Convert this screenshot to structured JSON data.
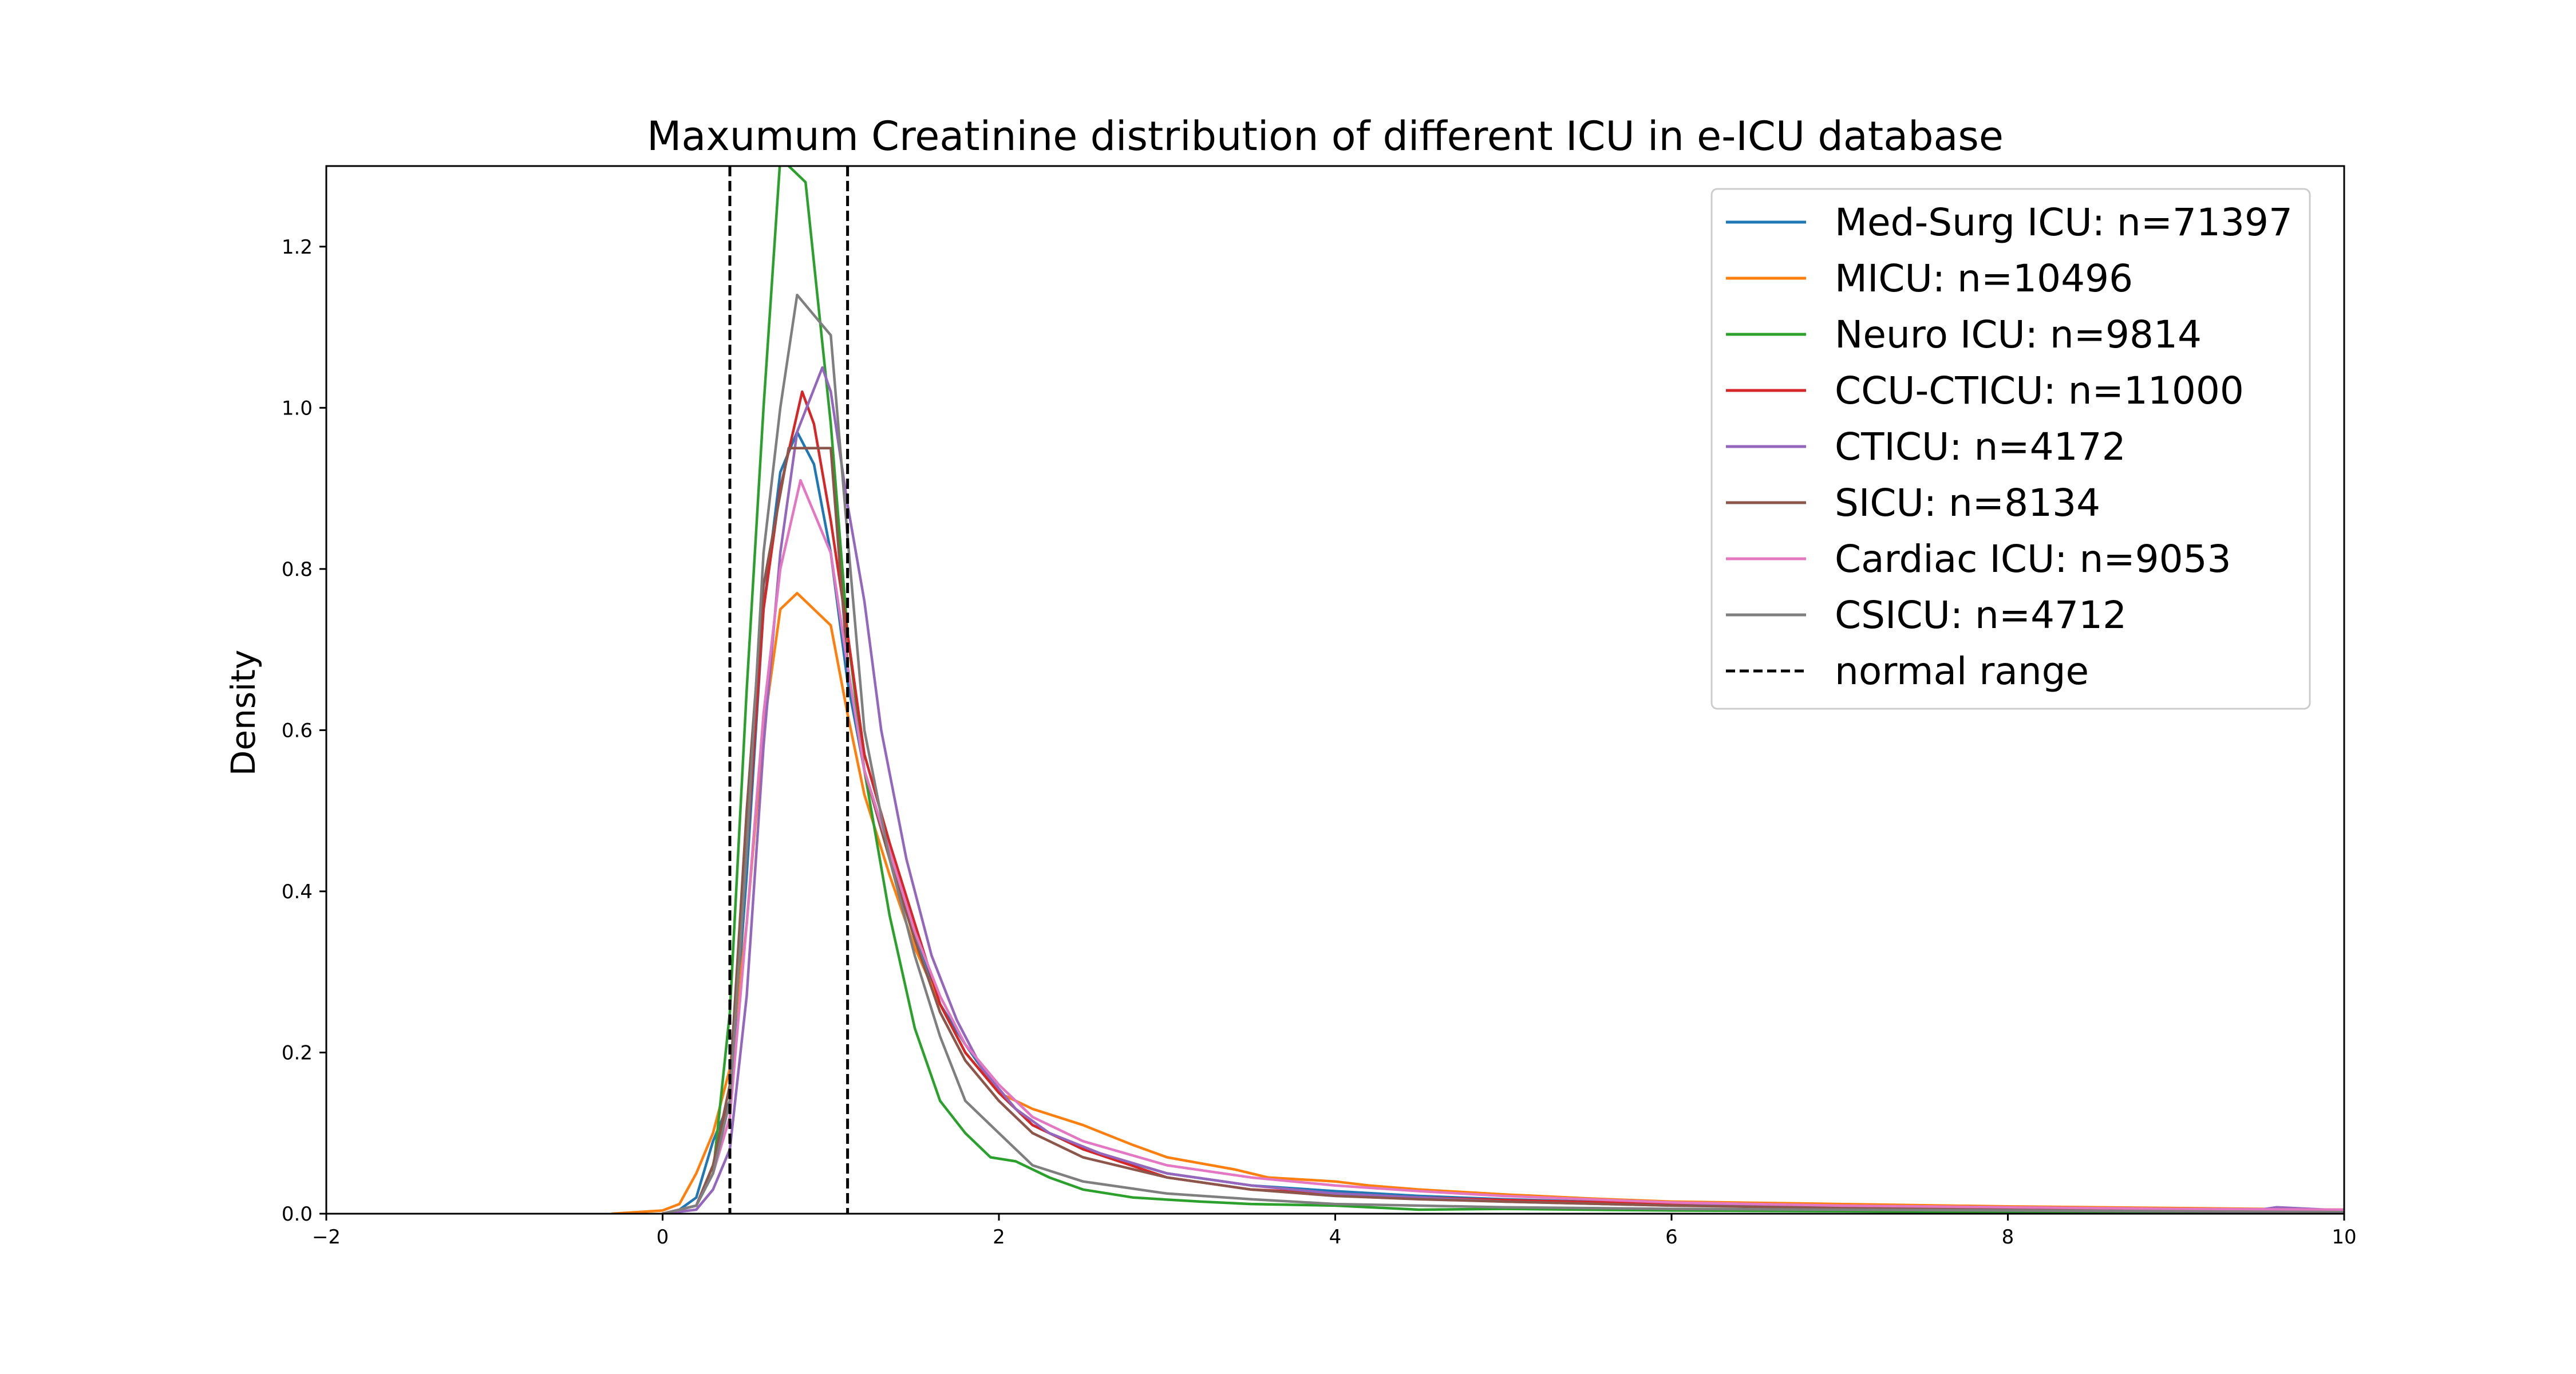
{
  "chart_data": {
    "type": "line",
    "title": "Maxumum Creatinine distribution of different ICU in e-ICU database",
    "xlabel": "",
    "ylabel": "Density",
    "xlim": [
      -2,
      10
    ],
    "ylim": [
      0,
      1.3
    ],
    "xticks": [
      "−2",
      "0",
      "2",
      "4",
      "6",
      "8",
      "10"
    ],
    "yticks": [
      "0.0",
      "0.2",
      "0.4",
      "0.6",
      "0.8",
      "1.0",
      "1.2"
    ],
    "xtick_values": [
      -2,
      0,
      2,
      4,
      6,
      8,
      10
    ],
    "ytick_values": [
      0,
      0.2,
      0.4,
      0.6,
      0.8,
      1.0,
      1.2
    ],
    "grid": false,
    "legend_position": "top-right",
    "normal_range": {
      "label": "normal range",
      "x": [
        0.4,
        1.1
      ],
      "color": "#000000"
    },
    "series": [
      {
        "name": "Med-Surg ICU: n=71397",
        "color": "#1f77b4",
        "x": [
          0,
          0.1,
          0.2,
          0.3,
          0.4,
          0.5,
          0.6,
          0.7,
          0.8,
          0.9,
          1.0,
          1.1,
          1.2,
          1.35,
          1.5,
          1.65,
          1.8,
          2.0,
          2.2,
          2.5,
          3.0,
          3.5,
          4.0,
          4.5,
          5.0,
          6.0,
          7.0,
          8.0,
          9.0,
          10.0
        ],
        "y": [
          0,
          0.005,
          0.02,
          0.09,
          0.14,
          0.42,
          0.75,
          0.92,
          0.97,
          0.93,
          0.82,
          0.66,
          0.55,
          0.45,
          0.35,
          0.26,
          0.21,
          0.15,
          0.11,
          0.08,
          0.05,
          0.035,
          0.028,
          0.022,
          0.018,
          0.012,
          0.009,
          0.007,
          0.005,
          0.004
        ]
      },
      {
        "name": "MICU: n=10496",
        "color": "#ff7f0e",
        "x": [
          -0.3,
          0,
          0.1,
          0.2,
          0.3,
          0.4,
          0.5,
          0.6,
          0.7,
          0.8,
          0.9,
          1.0,
          1.1,
          1.2,
          1.35,
          1.5,
          1.65,
          1.8,
          2.0,
          2.2,
          2.5,
          2.8,
          3.0,
          3.4,
          3.6,
          4.0,
          4.2,
          4.5,
          5.0,
          5.5,
          6.0,
          7.0,
          8.0,
          9.0,
          10.0
        ],
        "y": [
          0,
          0.004,
          0.012,
          0.05,
          0.1,
          0.18,
          0.36,
          0.6,
          0.75,
          0.77,
          0.75,
          0.73,
          0.62,
          0.52,
          0.42,
          0.33,
          0.26,
          0.2,
          0.15,
          0.13,
          0.11,
          0.085,
          0.07,
          0.055,
          0.045,
          0.04,
          0.035,
          0.03,
          0.024,
          0.019,
          0.015,
          0.012,
          0.009,
          0.007,
          0.005
        ]
      },
      {
        "name": "Neuro ICU: n=9814",
        "color": "#2ca02c",
        "x": [
          0,
          0.2,
          0.3,
          0.4,
          0.5,
          0.6,
          0.7,
          0.85,
          1.0,
          1.1,
          1.2,
          1.35,
          1.5,
          1.65,
          1.8,
          1.95,
          2.1,
          2.3,
          2.5,
          2.8,
          3.2,
          3.5,
          4.0,
          4.5,
          5.0,
          6.0,
          7.0,
          8.0,
          9.0,
          10.0
        ],
        "y": [
          0,
          0.01,
          0.05,
          0.25,
          0.65,
          1.0,
          1.31,
          1.28,
          0.98,
          0.72,
          0.55,
          0.37,
          0.23,
          0.14,
          0.1,
          0.07,
          0.065,
          0.045,
          0.03,
          0.02,
          0.015,
          0.012,
          0.01,
          0.005,
          0.006,
          0.004,
          0.003,
          0.002,
          0.002,
          0.002
        ]
      },
      {
        "name": "CCU-CTICU: n=11000",
        "color": "#d62728",
        "x": [
          0,
          0.2,
          0.3,
          0.4,
          0.5,
          0.6,
          0.7,
          0.83,
          0.9,
          1.0,
          1.1,
          1.2,
          1.35,
          1.5,
          1.65,
          1.8,
          2.0,
          2.2,
          2.5,
          3.0,
          3.5,
          4.0,
          4.5,
          5.0,
          6.0,
          7.0,
          8.0,
          9.0,
          10.0
        ],
        "y": [
          0,
          0.01,
          0.06,
          0.14,
          0.45,
          0.75,
          0.9,
          1.02,
          0.98,
          0.86,
          0.72,
          0.57,
          0.46,
          0.36,
          0.26,
          0.2,
          0.15,
          0.11,
          0.08,
          0.045,
          0.03,
          0.025,
          0.02,
          0.017,
          0.012,
          0.008,
          0.006,
          0.005,
          0.004
        ]
      },
      {
        "name": "CTICU: n=4172",
        "color": "#9467bd",
        "x": [
          0,
          0.2,
          0.3,
          0.4,
          0.5,
          0.6,
          0.7,
          0.8,
          0.95,
          1.0,
          1.1,
          1.2,
          1.3,
          1.45,
          1.6,
          1.75,
          1.9,
          2.1,
          2.3,
          2.6,
          3.0,
          3.5,
          4.0,
          4.5,
          5.0,
          6.0,
          7.0,
          8.0,
          9.0,
          9.5,
          9.6,
          10.0
        ],
        "y": [
          0,
          0.005,
          0.03,
          0.08,
          0.27,
          0.58,
          0.82,
          0.97,
          1.05,
          1.02,
          0.88,
          0.76,
          0.6,
          0.44,
          0.32,
          0.24,
          0.18,
          0.13,
          0.1,
          0.075,
          0.05,
          0.035,
          0.025,
          0.02,
          0.015,
          0.01,
          0.01,
          0.006,
          0.005,
          0.005,
          0.008,
          0.004
        ]
      },
      {
        "name": "SICU: n=8134",
        "color": "#8c564b",
        "x": [
          0,
          0.2,
          0.3,
          0.4,
          0.5,
          0.6,
          0.75,
          0.9,
          1.0,
          1.1,
          1.2,
          1.35,
          1.5,
          1.65,
          1.8,
          2.0,
          2.2,
          2.5,
          3.0,
          3.5,
          4.0,
          4.5,
          5.0,
          6.0,
          7.0,
          8.0,
          9.0,
          10.0
        ],
        "y": [
          0,
          0.01,
          0.06,
          0.16,
          0.5,
          0.78,
          0.95,
          0.95,
          0.95,
          0.68,
          0.55,
          0.44,
          0.34,
          0.25,
          0.19,
          0.14,
          0.1,
          0.07,
          0.045,
          0.03,
          0.022,
          0.018,
          0.015,
          0.01,
          0.007,
          0.006,
          0.005,
          0.004
        ]
      },
      {
        "name": "Cardiac ICU: n=9053",
        "color": "#e377c2",
        "x": [
          0,
          0.2,
          0.3,
          0.4,
          0.5,
          0.6,
          0.7,
          0.82,
          0.9,
          1.0,
          1.1,
          1.2,
          1.35,
          1.5,
          1.65,
          1.8,
          2.0,
          2.2,
          2.5,
          3.0,
          3.5,
          4.0,
          4.5,
          5.0,
          6.0,
          7.0,
          8.0,
          9.0,
          10.0
        ],
        "y": [
          0,
          0.01,
          0.05,
          0.12,
          0.36,
          0.62,
          0.8,
          0.91,
          0.87,
          0.82,
          0.68,
          0.55,
          0.45,
          0.35,
          0.27,
          0.21,
          0.16,
          0.12,
          0.09,
          0.06,
          0.045,
          0.035,
          0.028,
          0.022,
          0.014,
          0.01,
          0.008,
          0.006,
          0.005
        ]
      },
      {
        "name": "CSICU: n=4712",
        "color": "#7f7f7f",
        "x": [
          0,
          0.2,
          0.3,
          0.4,
          0.5,
          0.6,
          0.7,
          0.8,
          1.0,
          1.1,
          1.2,
          1.35,
          1.5,
          1.65,
          1.8,
          2.0,
          2.2,
          2.5,
          3.0,
          3.5,
          4.0,
          4.5,
          5.0,
          6.0,
          7.0,
          8.0,
          9.0,
          10.0
        ],
        "y": [
          0,
          0.01,
          0.05,
          0.14,
          0.45,
          0.82,
          1.0,
          1.14,
          1.09,
          0.84,
          0.6,
          0.44,
          0.32,
          0.22,
          0.14,
          0.1,
          0.06,
          0.04,
          0.025,
          0.018,
          0.012,
          0.01,
          0.008,
          0.006,
          0.005,
          0.004,
          0.003,
          0.002
        ]
      }
    ]
  }
}
